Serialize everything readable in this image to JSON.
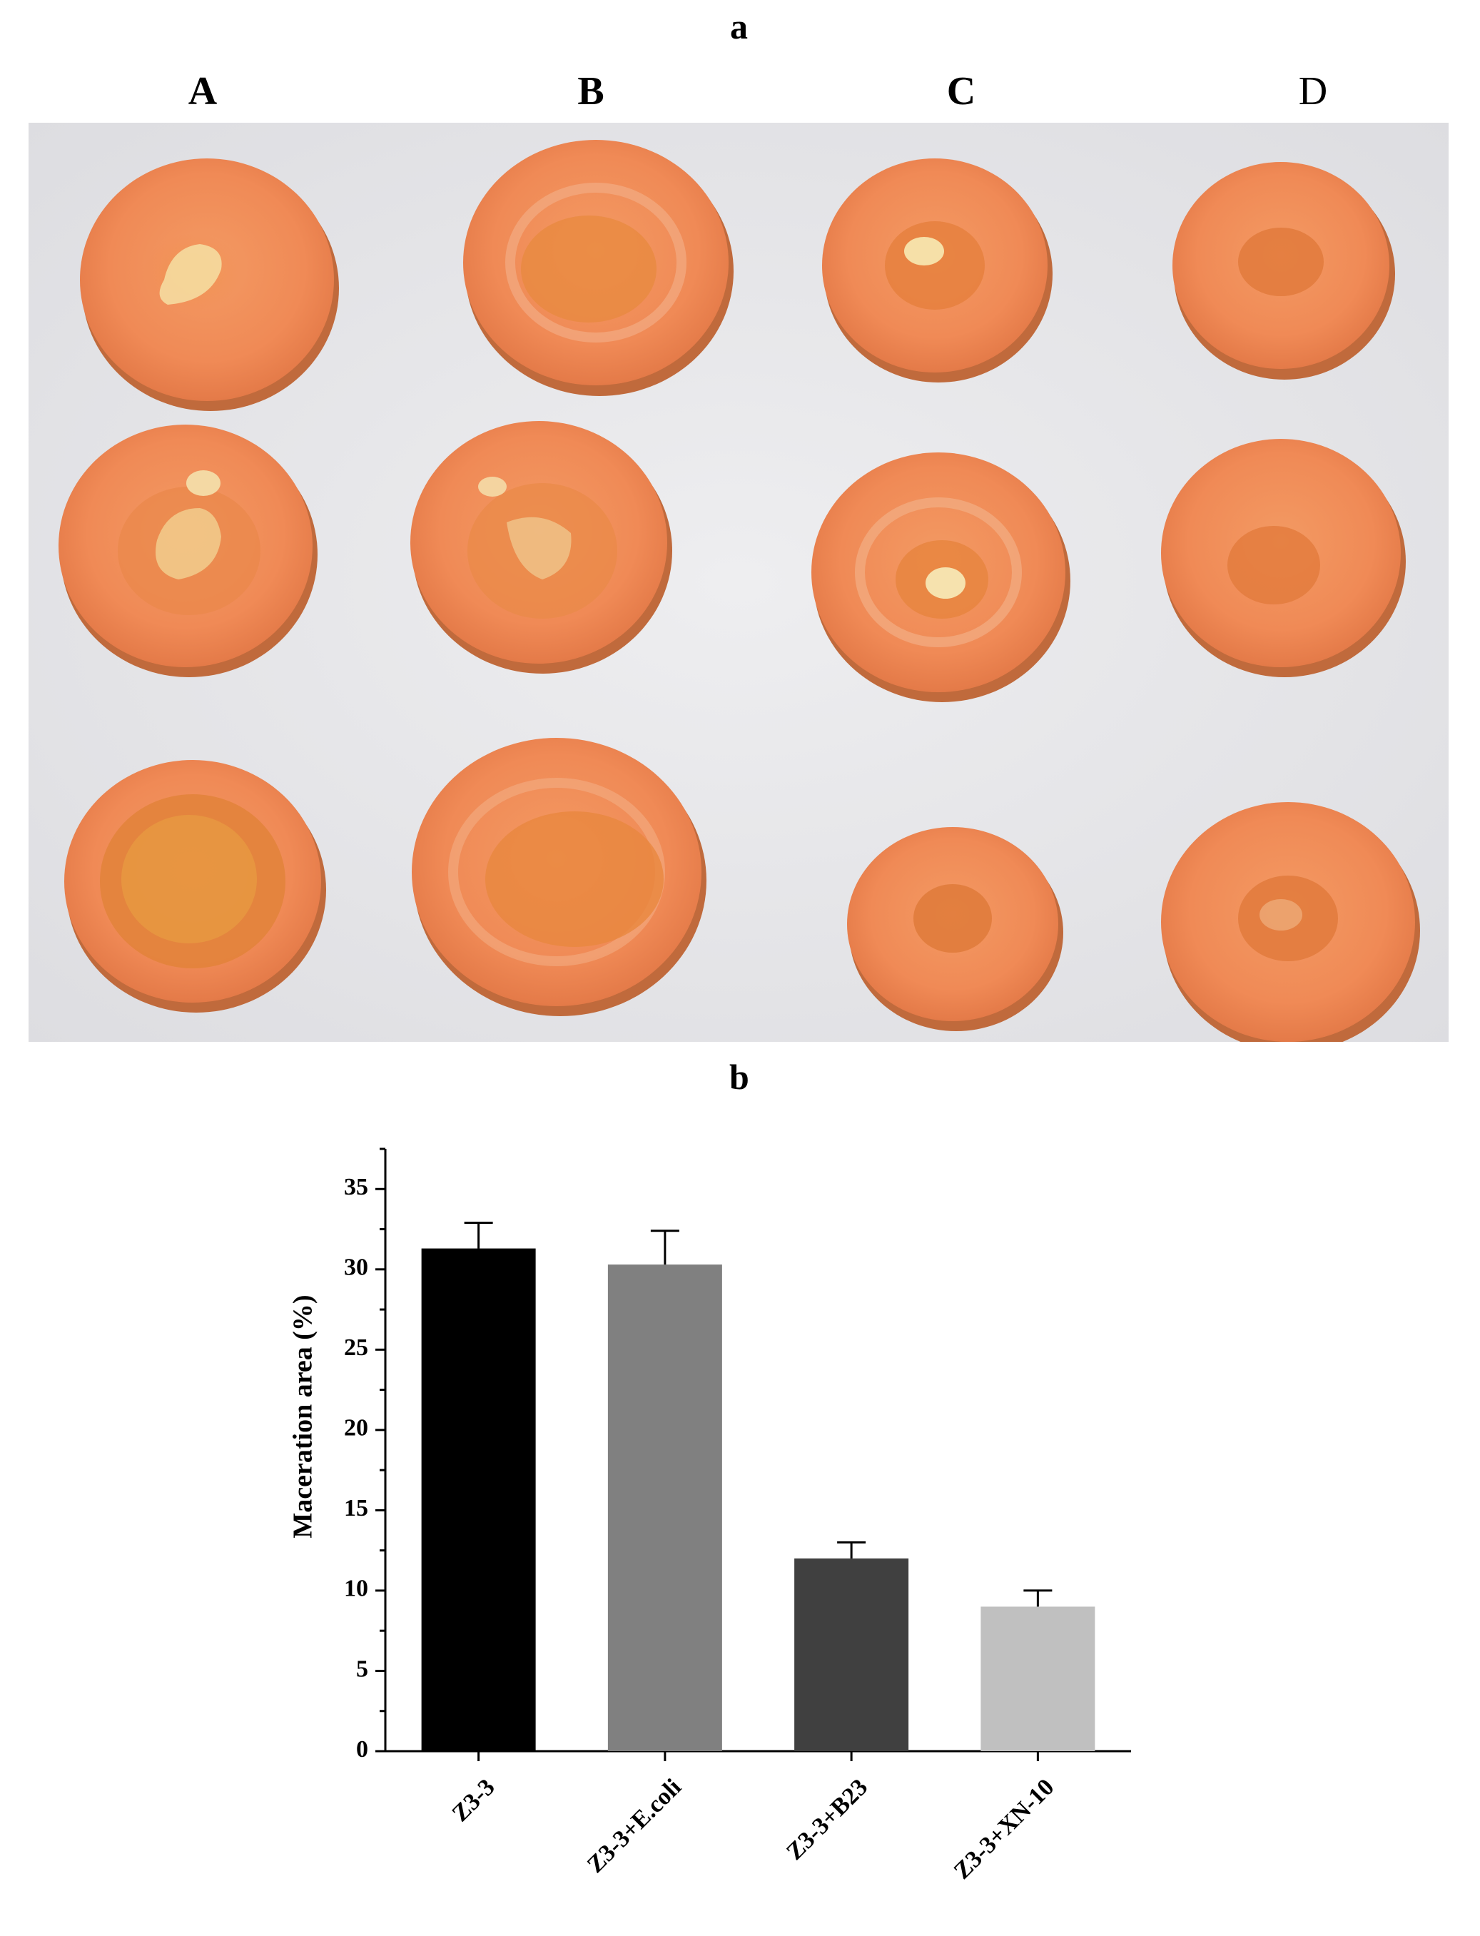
{
  "figure": {
    "panel_a_label": "a",
    "panel_b_label": "b",
    "column_labels": [
      "A",
      "B",
      "C",
      "D"
    ]
  },
  "photo": {
    "background_color": "#e6e6e8",
    "carrot_color": "#f08a56",
    "rows": 3,
    "columns": 4
  },
  "chart_data": {
    "type": "bar",
    "categories": [
      "Z3-3",
      "Z3-3+E.coli",
      "Z3-3+B23",
      "Z3-3+XN-10"
    ],
    "values": [
      31.3,
      30.3,
      12.0,
      9.0
    ],
    "errors": [
      1.6,
      2.1,
      1.0,
      1.0
    ],
    "colors": [
      "#000000",
      "#808080",
      "#404040",
      "#c0c0c0"
    ],
    "ylabel": "Maceration area (%)",
    "xlabel": "",
    "ylim": [
      0,
      37.5
    ],
    "yticks": [
      0,
      5,
      10,
      15,
      20,
      25,
      30,
      35
    ],
    "grid": false
  }
}
